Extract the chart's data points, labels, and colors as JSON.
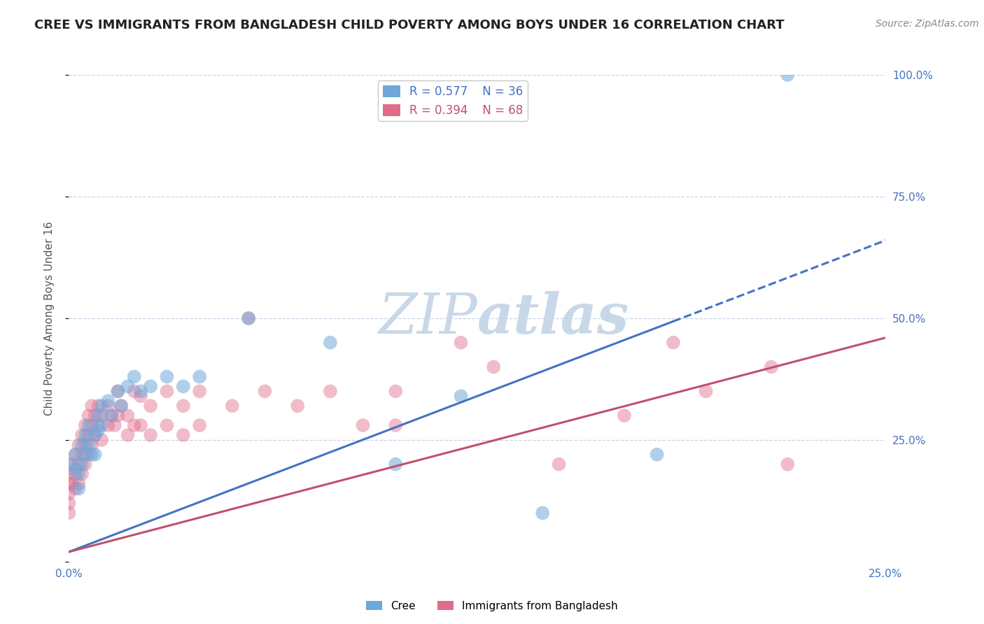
{
  "title": "CREE VS IMMIGRANTS FROM BANGLADESH CHILD POVERTY AMONG BOYS UNDER 16 CORRELATION CHART",
  "source": "Source: ZipAtlas.com",
  "ylabel": "Child Poverty Among Boys Under 16",
  "xmin": 0.0,
  "xmax": 0.25,
  "ymin": 0.0,
  "ymax": 1.0,
  "yticks": [
    0.0,
    0.25,
    0.5,
    0.75,
    1.0
  ],
  "ytick_labels": [
    "",
    "25.0%",
    "50.0%",
    "75.0%",
    "100.0%"
  ],
  "cree_R": 0.577,
  "cree_N": 36,
  "bangladesh_R": 0.394,
  "bangladesh_N": 68,
  "cree_color": "#6fa8dc",
  "bangladesh_color": "#e06c8a",
  "cree_line_color": "#4472c4",
  "bangladesh_line_color": "#c0506e",
  "watermark_color": "#c8d8e8",
  "background_color": "#ffffff",
  "grid_color": "#c8d4e8",
  "cree_scatter": [
    [
      0.0,
      0.2
    ],
    [
      0.002,
      0.22
    ],
    [
      0.002,
      0.19
    ],
    [
      0.003,
      0.18
    ],
    [
      0.003,
      0.15
    ],
    [
      0.004,
      0.24
    ],
    [
      0.004,
      0.2
    ],
    [
      0.005,
      0.26
    ],
    [
      0.005,
      0.22
    ],
    [
      0.006,
      0.28
    ],
    [
      0.006,
      0.24
    ],
    [
      0.007,
      0.22
    ],
    [
      0.008,
      0.26
    ],
    [
      0.008,
      0.22
    ],
    [
      0.009,
      0.3
    ],
    [
      0.009,
      0.27
    ],
    [
      0.01,
      0.32
    ],
    [
      0.01,
      0.28
    ],
    [
      0.012,
      0.33
    ],
    [
      0.013,
      0.3
    ],
    [
      0.015,
      0.35
    ],
    [
      0.016,
      0.32
    ],
    [
      0.018,
      0.36
    ],
    [
      0.02,
      0.38
    ],
    [
      0.022,
      0.35
    ],
    [
      0.025,
      0.36
    ],
    [
      0.03,
      0.38
    ],
    [
      0.035,
      0.36
    ],
    [
      0.04,
      0.38
    ],
    [
      0.055,
      0.5
    ],
    [
      0.08,
      0.45
    ],
    [
      0.1,
      0.2
    ],
    [
      0.12,
      0.34
    ],
    [
      0.145,
      0.1
    ],
    [
      0.18,
      0.22
    ],
    [
      0.22,
      1.0
    ]
  ],
  "bangladesh_scatter": [
    [
      0.0,
      0.18
    ],
    [
      0.0,
      0.16
    ],
    [
      0.0,
      0.14
    ],
    [
      0.0,
      0.12
    ],
    [
      0.0,
      0.1
    ],
    [
      0.001,
      0.2
    ],
    [
      0.001,
      0.16
    ],
    [
      0.002,
      0.22
    ],
    [
      0.002,
      0.18
    ],
    [
      0.002,
      0.15
    ],
    [
      0.003,
      0.24
    ],
    [
      0.003,
      0.2
    ],
    [
      0.003,
      0.16
    ],
    [
      0.004,
      0.26
    ],
    [
      0.004,
      0.22
    ],
    [
      0.004,
      0.18
    ],
    [
      0.005,
      0.28
    ],
    [
      0.005,
      0.24
    ],
    [
      0.005,
      0.2
    ],
    [
      0.006,
      0.3
    ],
    [
      0.006,
      0.26
    ],
    [
      0.006,
      0.22
    ],
    [
      0.007,
      0.32
    ],
    [
      0.007,
      0.28
    ],
    [
      0.007,
      0.24
    ],
    [
      0.008,
      0.3
    ],
    [
      0.008,
      0.26
    ],
    [
      0.009,
      0.32
    ],
    [
      0.009,
      0.28
    ],
    [
      0.01,
      0.3
    ],
    [
      0.01,
      0.25
    ],
    [
      0.012,
      0.32
    ],
    [
      0.012,
      0.28
    ],
    [
      0.013,
      0.3
    ],
    [
      0.014,
      0.28
    ],
    [
      0.015,
      0.35
    ],
    [
      0.015,
      0.3
    ],
    [
      0.016,
      0.32
    ],
    [
      0.018,
      0.3
    ],
    [
      0.018,
      0.26
    ],
    [
      0.02,
      0.35
    ],
    [
      0.02,
      0.28
    ],
    [
      0.022,
      0.34
    ],
    [
      0.022,
      0.28
    ],
    [
      0.025,
      0.32
    ],
    [
      0.025,
      0.26
    ],
    [
      0.03,
      0.35
    ],
    [
      0.03,
      0.28
    ],
    [
      0.035,
      0.32
    ],
    [
      0.035,
      0.26
    ],
    [
      0.04,
      0.35
    ],
    [
      0.04,
      0.28
    ],
    [
      0.05,
      0.32
    ],
    [
      0.055,
      0.5
    ],
    [
      0.06,
      0.35
    ],
    [
      0.07,
      0.32
    ],
    [
      0.08,
      0.35
    ],
    [
      0.09,
      0.28
    ],
    [
      0.1,
      0.35
    ],
    [
      0.1,
      0.28
    ],
    [
      0.12,
      0.45
    ],
    [
      0.13,
      0.4
    ],
    [
      0.15,
      0.2
    ],
    [
      0.17,
      0.3
    ],
    [
      0.185,
      0.45
    ],
    [
      0.195,
      0.35
    ],
    [
      0.215,
      0.4
    ],
    [
      0.22,
      0.2
    ]
  ],
  "cree_line": {
    "x0": 0.0,
    "y0": 0.02,
    "x1": 0.25,
    "y1": 0.66
  },
  "cree_line_solid_x1": 0.185,
  "bangladesh_line": {
    "x0": 0.0,
    "y0": 0.02,
    "x1": 0.25,
    "y1": 0.46
  },
  "title_fontsize": 13,
  "axis_label_fontsize": 11,
  "tick_fontsize": 11,
  "source_fontsize": 10
}
